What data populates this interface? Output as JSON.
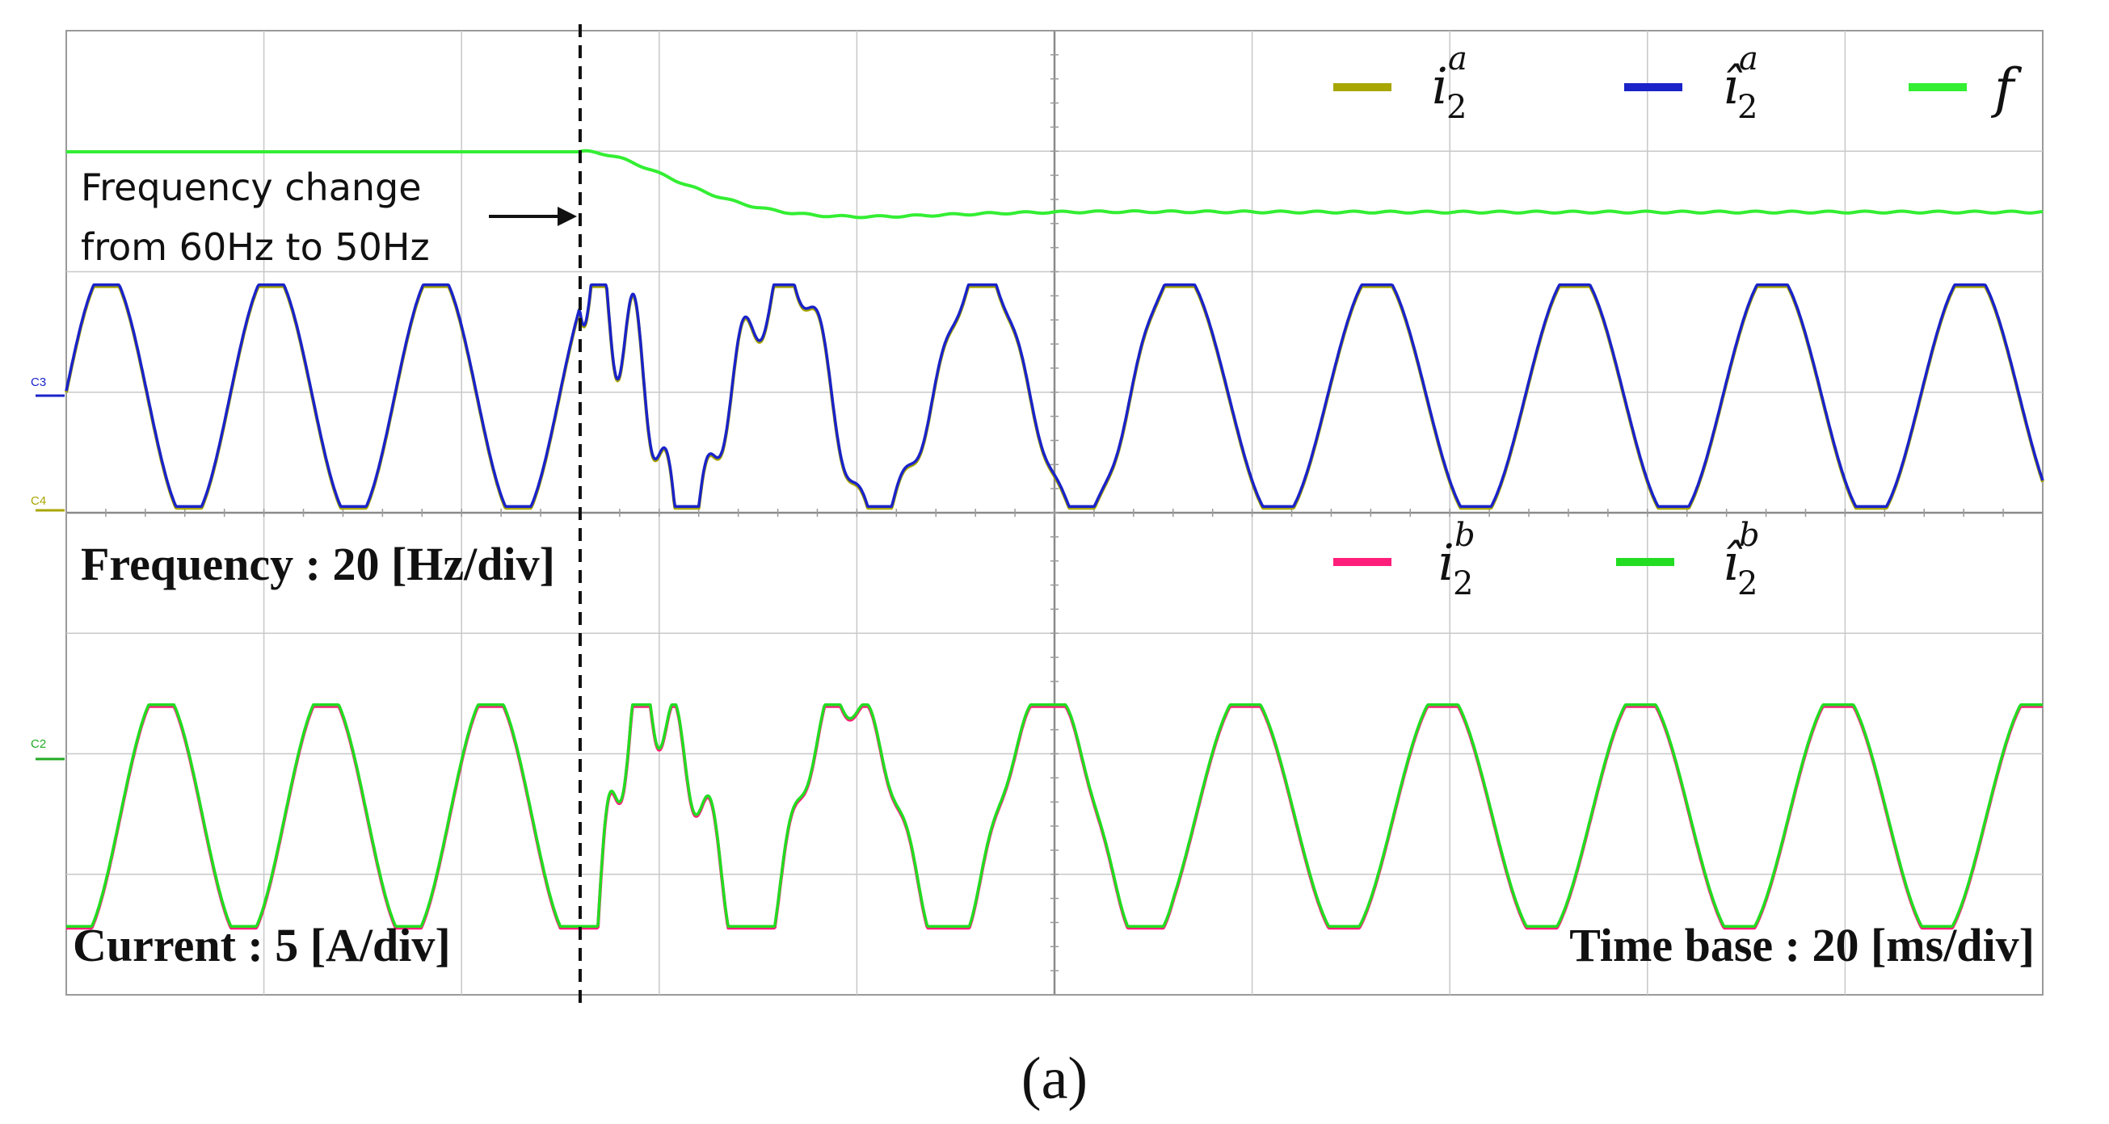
{
  "chart_data": {
    "type": "line",
    "time_unit": "ms",
    "xlim": [
      0,
      200
    ],
    "x_divisions": 10,
    "y_divisions": 8,
    "event_time_ms": 52,
    "frequency_change": {
      "from_hz": 60,
      "to_hz": 50
    },
    "series": [
      {
        "id": "f",
        "name": "f",
        "color": "#33ee33",
        "role": "frequency"
      },
      {
        "id": "i2a",
        "name": "i_2^a",
        "color": "#a8a600",
        "role": "current-a"
      },
      {
        "id": "i2a_hat",
        "name": "î_2^a",
        "color": "#1a23c8",
        "role": "current-a"
      },
      {
        "id": "i2b",
        "name": "i_2^b",
        "color": "#ff1f7a",
        "role": "current-b"
      },
      {
        "id": "i2b_hat",
        "name": "î_2^b",
        "color": "#22dd22",
        "role": "current-b"
      }
    ],
    "channel_markers": [
      "C3",
      "C4",
      "C2"
    ],
    "annotations": {
      "event_text_line1": "Frequency change",
      "event_text_line2": "from 60Hz to 50Hz",
      "frequency_scale": "Frequency : 20 [Hz/div]",
      "current_scale": "Current : 5 [A/div]",
      "time_base": "Time base : 20 [ms/div]"
    },
    "legend": {
      "top": [
        "i2a",
        "i2a_hat",
        "f"
      ],
      "bottom": [
        "i2b",
        "i2b_hat"
      ]
    },
    "caption": "(a)"
  }
}
